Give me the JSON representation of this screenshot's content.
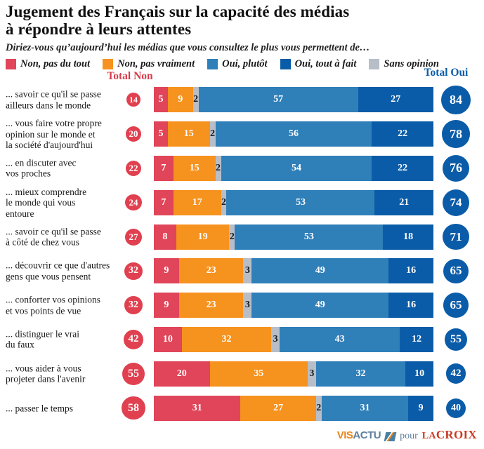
{
  "title": "Jugement des Français sur la capacité des médias\nà répondre à leurs attentes",
  "subtitle": "Diriez-vous qu’aujourd’hui les médias que vous consultez le plus vous permettent de…",
  "legend": [
    {
      "label": "Non, pas du tout",
      "color": "#e0455a"
    },
    {
      "label": "Non, pas vraiment",
      "color": "#f6921e"
    },
    {
      "label": "Oui, plutôt",
      "color": "#2f7fb9"
    },
    {
      "label": "Oui, tout à fait",
      "color": "#0b5ca8"
    },
    {
      "label": "Sans opinion",
      "color": "#b7bec8"
    }
  ],
  "columns": {
    "total_non": "Total Non",
    "total_oui": "Total Oui"
  },
  "colors": {
    "total_non_text": "#d63c4a",
    "total_oui_text": "#0b5ca8",
    "non_badge": "#e0404f",
    "oui_badge": "#0b5ca8",
    "segment_colors": [
      "#e0455a",
      "#f6921e",
      "#b7bec8",
      "#2f7fb9",
      "#0b5ca8"
    ],
    "segment_text_colors": [
      "#ffffff",
      "#ffffff",
      "#1a1a1a",
      "#ffffff",
      "#ffffff"
    ]
  },
  "chart_data": {
    "type": "bar",
    "stacked": true,
    "orientation": "horizontal",
    "unit": "%",
    "axis_range": [
      0,
      100
    ],
    "segments_order": [
      "Non, pas du tout",
      "Non, pas vraiment",
      "Sans opinion",
      "Oui, plutôt",
      "Oui, tout à fait"
    ],
    "rows": [
      {
        "label": "... savoir ce qu'il se passe\nailleurs dans le monde",
        "total_non": 14,
        "values": [
          5,
          9,
          2,
          57,
          27
        ],
        "total_oui": 84
      },
      {
        "label": "... vous faire votre propre\nopinion sur le monde et\nla société d'aujourd'hui",
        "total_non": 20,
        "values": [
          5,
          15,
          2,
          56,
          22
        ],
        "total_oui": 78
      },
      {
        "label": "... en discuter avec\nvos proches",
        "total_non": 22,
        "values": [
          7,
          15,
          2,
          54,
          22
        ],
        "total_oui": 76
      },
      {
        "label": "... mieux comprendre\nle monde qui vous\nentoure",
        "total_non": 24,
        "values": [
          7,
          17,
          2,
          53,
          21
        ],
        "total_oui": 74
      },
      {
        "label": "... savoir ce qu'il se passe\nà côté de chez vous",
        "total_non": 27,
        "values": [
          8,
          19,
          2,
          53,
          18
        ],
        "total_oui": 71
      },
      {
        "label": "... découvrir ce que d'autres\ngens que vous pensent",
        "total_non": 32,
        "values": [
          9,
          23,
          3,
          49,
          16
        ],
        "total_oui": 65
      },
      {
        "label": "... conforter vos opinions\net vos points de vue",
        "total_non": 32,
        "values": [
          9,
          23,
          3,
          49,
          16
        ],
        "total_oui": 65
      },
      {
        "label": "... distinguer le vrai\ndu faux",
        "total_non": 42,
        "values": [
          10,
          32,
          3,
          43,
          12
        ],
        "total_oui": 55
      },
      {
        "label": "... vous aider à  vous\nprojeter dans l'avenir",
        "total_non": 55,
        "values": [
          20,
          35,
          3,
          32,
          10
        ],
        "total_oui": 42
      },
      {
        "label": "... passer le temps",
        "total_non": 58,
        "values": [
          31,
          27,
          2,
          31,
          9
        ],
        "total_oui": 40
      }
    ]
  },
  "footer": {
    "visactu_vis": "VIS",
    "visactu_actu": "ACTU",
    "pour": "pour",
    "lacroix_la": "LA",
    "lacroix_croix": "CROIX"
  }
}
